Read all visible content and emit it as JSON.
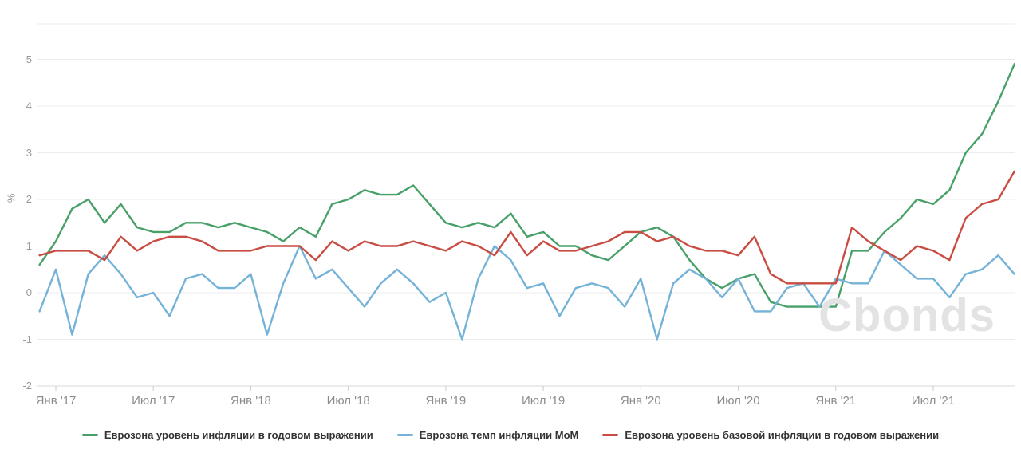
{
  "chart_data": {
    "type": "line",
    "title": "",
    "ylabel": "%",
    "grid": "horizontal",
    "legend_position": "bottom-center",
    "ylim": [
      -2,
      5.76
    ],
    "y_ticks": [
      5,
      4,
      3,
      2,
      1,
      0,
      -1,
      -2
    ],
    "x_tick_labels": [
      "Янв '17",
      "Июл '17",
      "Янв '18",
      "Июл '18",
      "Янв '19",
      "Июл '19",
      "Янв '20",
      "Июл '20",
      "Янв '21",
      "Июл '21"
    ],
    "x_tick_indices": [
      1,
      7,
      13,
      19,
      25,
      31,
      37,
      43,
      49,
      55
    ],
    "months": [
      "2016-11",
      "2016-12",
      "2017-01",
      "2017-02",
      "2017-03",
      "2017-04",
      "2017-05",
      "2017-06",
      "2017-07",
      "2017-08",
      "2017-09",
      "2017-10",
      "2017-11",
      "2017-12",
      "2018-01",
      "2018-02",
      "2018-03",
      "2018-04",
      "2018-05",
      "2018-06",
      "2018-07",
      "2018-08",
      "2018-09",
      "2018-10",
      "2018-11",
      "2018-12",
      "2019-01",
      "2019-02",
      "2019-03",
      "2019-04",
      "2019-05",
      "2019-06",
      "2019-07",
      "2019-08",
      "2019-09",
      "2019-10",
      "2019-11",
      "2019-12",
      "2020-01",
      "2020-02",
      "2020-03",
      "2020-04",
      "2020-05",
      "2020-06",
      "2020-07",
      "2020-08",
      "2020-09",
      "2020-10",
      "2020-11",
      "2020-12",
      "2021-01",
      "2021-02",
      "2021-03",
      "2021-04",
      "2021-05",
      "2021-06",
      "2021-07",
      "2021-08",
      "2021-09",
      "2021-10",
      "2021-11"
    ],
    "series": [
      {
        "name": "Еврозона уровень инфляции в годовом выражении",
        "color": "#48a069",
        "values": [
          0.6,
          1.1,
          1.8,
          2.0,
          1.5,
          1.9,
          1.4,
          1.3,
          1.3,
          1.5,
          1.5,
          1.4,
          1.5,
          1.4,
          1.3,
          1.1,
          1.4,
          1.2,
          1.9,
          2.0,
          2.2,
          2.1,
          2.1,
          2.3,
          1.9,
          1.5,
          1.4,
          1.5,
          1.4,
          1.7,
          1.2,
          1.3,
          1.0,
          1.0,
          0.8,
          0.7,
          1.0,
          1.3,
          1.4,
          1.2,
          0.7,
          0.3,
          0.1,
          0.3,
          0.4,
          -0.2,
          -0.3,
          -0.3,
          -0.3,
          -0.3,
          0.9,
          0.9,
          1.3,
          1.6,
          2.0,
          1.9,
          2.2,
          3.0,
          3.4,
          4.1,
          4.9
        ]
      },
      {
        "name": "Еврозона темп инфляции MoM",
        "color": "#74b2d8",
        "values": [
          -0.4,
          0.5,
          -0.9,
          0.4,
          0.8,
          0.4,
          -0.1,
          0.0,
          -0.5,
          0.3,
          0.4,
          0.1,
          0.1,
          0.4,
          -0.9,
          0.2,
          1.0,
          0.3,
          0.5,
          0.1,
          -0.3,
          0.2,
          0.5,
          0.2,
          -0.2,
          0.0,
          -1.0,
          0.3,
          1.0,
          0.7,
          0.1,
          0.2,
          -0.5,
          0.1,
          0.2,
          0.1,
          -0.3,
          0.3,
          -1.0,
          0.2,
          0.5,
          0.3,
          -0.1,
          0.3,
          -0.4,
          -0.4,
          0.1,
          0.2,
          -0.3,
          0.3,
          0.2,
          0.2,
          0.9,
          0.6,
          0.3,
          0.3,
          -0.1,
          0.4,
          0.5,
          0.8,
          0.4
        ]
      },
      {
        "name": "Еврозона уровень базовой инфляции в годовом выражении",
        "color": "#c94c42",
        "values": [
          0.8,
          0.9,
          0.9,
          0.9,
          0.7,
          1.2,
          0.9,
          1.1,
          1.2,
          1.2,
          1.1,
          0.9,
          0.9,
          0.9,
          1.0,
          1.0,
          1.0,
          0.7,
          1.1,
          0.9,
          1.1,
          1.0,
          1.0,
          1.1,
          1.0,
          0.9,
          1.1,
          1.0,
          0.8,
          1.3,
          0.8,
          1.1,
          0.9,
          0.9,
          1.0,
          1.1,
          1.3,
          1.3,
          1.1,
          1.2,
          1.0,
          0.9,
          0.9,
          0.8,
          1.2,
          0.4,
          0.2,
          0.2,
          0.2,
          0.2,
          1.4,
          1.1,
          0.9,
          0.7,
          1.0,
          0.9,
          0.7,
          1.6,
          1.9,
          2.0,
          2.6
        ]
      }
    ]
  },
  "watermark": {
    "text": "Cbonds"
  },
  "colors": {
    "background": "#ffffff",
    "gridline": "#ececec",
    "axis_line": "#d8d8d8",
    "tick_mark": "#cccccc",
    "y_label": "#999999",
    "x_label": "#8c8c8c",
    "legend_text": "#333333"
  }
}
